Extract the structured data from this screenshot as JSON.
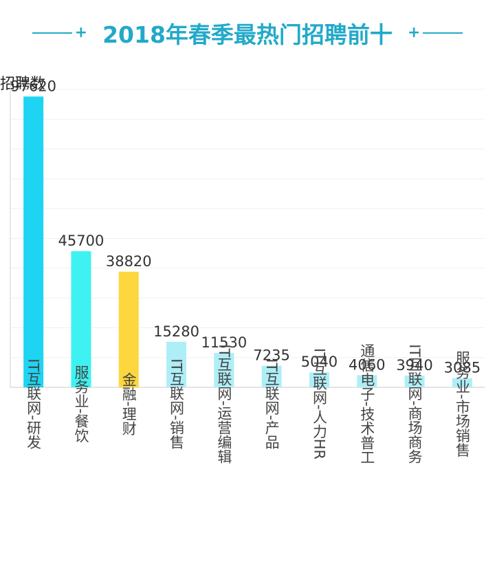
{
  "chart_data": {
    "type": "bar",
    "title": "2018年春季最热门招聘前十",
    "ylabel": "招聘数",
    "xlabel": "",
    "ylim": [
      0,
      100000
    ],
    "grid": true,
    "categories": [
      "IT互联网-研发",
      "服务业-餐饮",
      "金融-理财",
      "IT互联网-销售",
      "IT互联网-运营编辑",
      "IT互联网-产品",
      "IT互联网-人力HR",
      "通信电子-技术普工",
      "IT互联网-商场商务",
      "服务业-市场销售"
    ],
    "values": [
      97620,
      45700,
      38820,
      15280,
      11530,
      7235,
      5040,
      4060,
      3940,
      3085
    ],
    "colors": [
      "#1ed4f2",
      "#3ef2f2",
      "#fdd73d",
      "#aeeef7",
      "#aeeef7",
      "#aeeef7",
      "#aeeef7",
      "#aeeef7",
      "#aeeef7",
      "#aeeef7"
    ]
  }
}
